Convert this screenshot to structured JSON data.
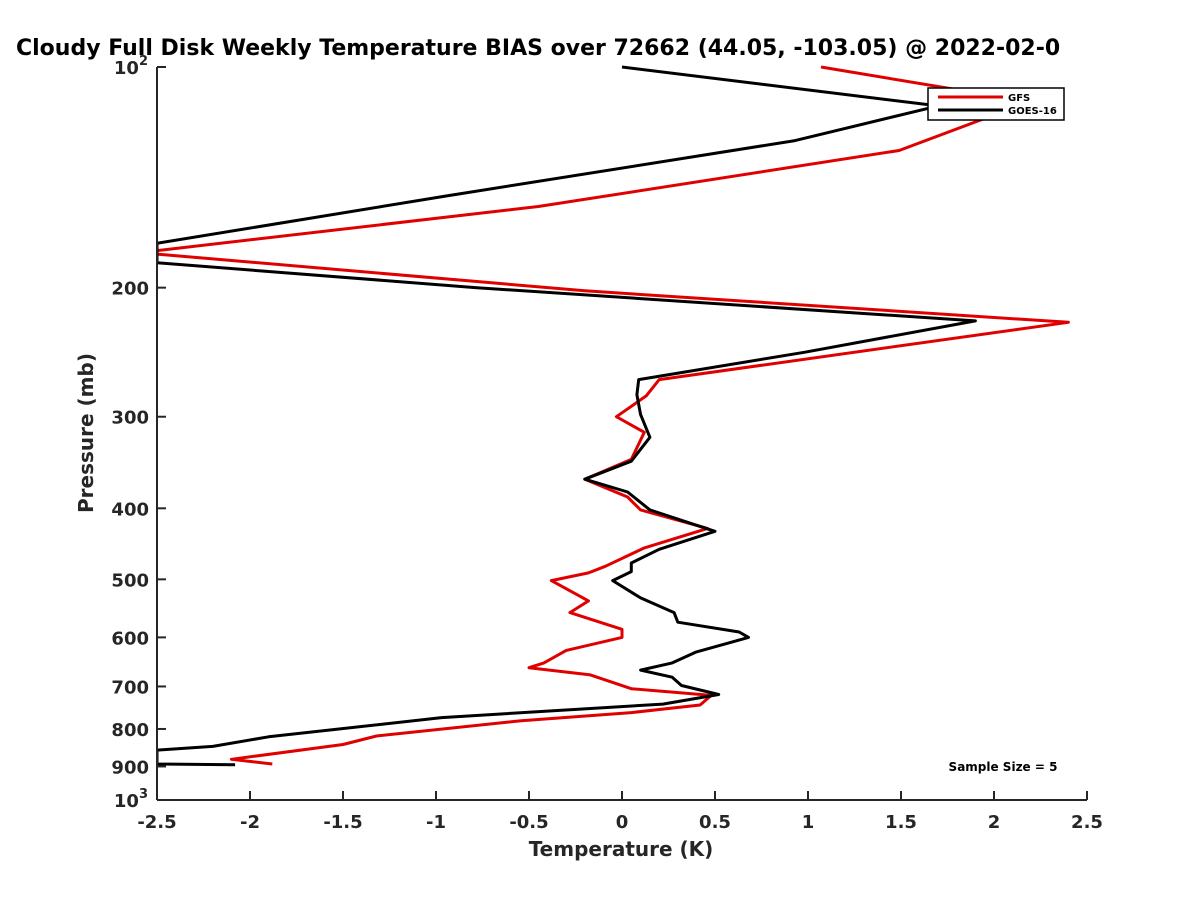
{
  "chart_data": {
    "type": "line",
    "title": "Cloudy Full Disk Weekly Temperature BIAS over 72662 (44.05, -103.05) @ 2022-02-0",
    "xlabel": "Temperature (K)",
    "ylabel": "Pressure (mb)",
    "xlim": [
      -2.5,
      2.5
    ],
    "ylim": [
      100,
      1000
    ],
    "y_scale": "log",
    "y_reversed": true,
    "grid": false,
    "x_ticks": [
      -2.5,
      -2,
      -1.5,
      -1,
      -0.5,
      0,
      0.5,
      1,
      1.5,
      2,
      2.5
    ],
    "x_tick_labels": [
      "-2.5",
      "-2",
      "-1.5",
      "-1",
      "-0.5",
      "0",
      "0.5",
      "1",
      "1.5",
      "2",
      "2.5"
    ],
    "y_ticks": [
      100,
      200,
      300,
      400,
      500,
      600,
      700,
      800,
      900,
      1000
    ],
    "y_tick_labels": [
      {
        "base": "10",
        "exp": "2"
      },
      {
        "base": "200",
        "exp": ""
      },
      {
        "base": "300",
        "exp": ""
      },
      {
        "base": "400",
        "exp": ""
      },
      {
        "base": "500",
        "exp": ""
      },
      {
        "base": "600",
        "exp": ""
      },
      {
        "base": "700",
        "exp": ""
      },
      {
        "base": "800",
        "exp": ""
      },
      {
        "base": "900",
        "exp": ""
      },
      {
        "base": "10",
        "exp": "3"
      }
    ],
    "legend_position": "top-right",
    "annotation": "Sample Size = 5",
    "series": [
      {
        "name": "GFS",
        "color": "#e00000",
        "points": [
          [
            1.07,
            100
          ],
          [
            1.86,
            108
          ],
          [
            2.05,
            115
          ],
          [
            1.49,
            130
          ],
          [
            -0.45,
            155
          ],
          [
            -2.5,
            178
          ],
          [
            -2.5,
            180
          ],
          [
            -0.2,
            202
          ],
          [
            2.4,
            223
          ],
          [
            0.2,
            267
          ],
          [
            0.13,
            281
          ],
          [
            -0.03,
            300
          ],
          [
            0.12,
            315
          ],
          [
            0.05,
            343
          ],
          [
            -0.2,
            365
          ],
          [
            0.03,
            386
          ],
          [
            0.1,
            402
          ],
          [
            0.46,
            426
          ],
          [
            0.12,
            453
          ],
          [
            -0.09,
            480
          ],
          [
            -0.18,
            490
          ],
          [
            -0.38,
            502
          ],
          [
            -0.18,
            535
          ],
          [
            -0.28,
            555
          ],
          [
            0.0,
            585
          ],
          [
            0.0,
            600
          ],
          [
            -0.3,
            625
          ],
          [
            -0.42,
            650
          ],
          [
            -0.5,
            660
          ],
          [
            -0.17,
            675
          ],
          [
            0.05,
            705
          ],
          [
            0.48,
            720
          ],
          [
            0.42,
            742
          ],
          [
            0.05,
            760
          ],
          [
            -0.55,
            780
          ],
          [
            -1.32,
            818
          ],
          [
            -1.5,
            840
          ],
          [
            -2.1,
            880
          ],
          [
            -1.88,
            893
          ]
        ]
      },
      {
        "name": "GOES-16",
        "color": "#000000",
        "points": [
          [
            0.0,
            100
          ],
          [
            1.7,
            113
          ],
          [
            0.93,
            126
          ],
          [
            -0.95,
            150
          ],
          [
            -2.5,
            174
          ],
          [
            -2.5,
            185
          ],
          [
            -0.78,
            200
          ],
          [
            1.9,
            222
          ],
          [
            0.98,
            245
          ],
          [
            0.09,
            267
          ],
          [
            0.08,
            280
          ],
          [
            0.1,
            298
          ],
          [
            0.15,
            320
          ],
          [
            0.05,
            345
          ],
          [
            -0.2,
            365
          ],
          [
            0.03,
            380
          ],
          [
            0.15,
            402
          ],
          [
            0.5,
            430
          ],
          [
            0.2,
            455
          ],
          [
            0.05,
            475
          ],
          [
            0.05,
            488
          ],
          [
            -0.05,
            502
          ],
          [
            0.1,
            530
          ],
          [
            0.28,
            555
          ],
          [
            0.3,
            572
          ],
          [
            0.63,
            590
          ],
          [
            0.68,
            600
          ],
          [
            0.4,
            628
          ],
          [
            0.27,
            650
          ],
          [
            0.1,
            665
          ],
          [
            0.27,
            680
          ],
          [
            0.32,
            698
          ],
          [
            0.52,
            718
          ],
          [
            0.22,
            740
          ],
          [
            -0.97,
            772
          ],
          [
            -1.9,
            820
          ],
          [
            -2.2,
            845
          ],
          [
            -2.5,
            855
          ],
          [
            -2.5,
            893
          ],
          [
            -2.08,
            895
          ]
        ]
      }
    ]
  }
}
